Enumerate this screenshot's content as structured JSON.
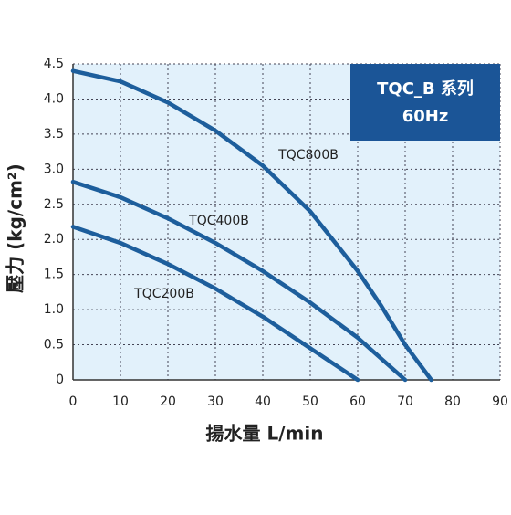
{
  "chart_data": {
    "type": "line",
    "xlabel": "揚水量 L/min",
    "ylabel": "壓力 (kg/cm²)",
    "box_lines": [
      "TQC_B 系列",
      "60Hz"
    ],
    "xlim": [
      0,
      90
    ],
    "ylim": [
      0,
      4.5
    ],
    "xticks": [
      0,
      10,
      20,
      30,
      40,
      50,
      60,
      70,
      80,
      90
    ],
    "yticks": [
      0,
      {
        "value": 0.5,
        "label": "0.5"
      },
      {
        "value": 1,
        "label": "1.0"
      },
      {
        "value": 1.5,
        "label": "1.5"
      },
      {
        "value": 2,
        "label": "2.0"
      },
      {
        "value": 2.5,
        "label": "2.5"
      },
      {
        "value": 3,
        "label": "3.0"
      },
      {
        "value": 3.5,
        "label": "3.5"
      },
      {
        "value": 4,
        "label": "4.0"
      },
      {
        "value": 4.5,
        "label": "4.5"
      }
    ],
    "grid": true,
    "series": [
      {
        "name": "TQC800B",
        "color": "#1d5e9c",
        "x": [
          0,
          10,
          20,
          30,
          40,
          50,
          60,
          65,
          70,
          75.5
        ],
        "values": [
          4.4,
          4.25,
          3.95,
          3.55,
          3.05,
          2.4,
          1.55,
          1.05,
          0.5,
          0
        ]
      },
      {
        "name": "TQC400B",
        "color": "#1d5e9c",
        "x": [
          0,
          10,
          20,
          30,
          40,
          50,
          60,
          70
        ],
        "values": [
          2.82,
          2.6,
          2.3,
          1.95,
          1.55,
          1.1,
          0.6,
          0
        ]
      },
      {
        "name": "TQC200B",
        "color": "#1d5e9c",
        "x": [
          0,
          10,
          20,
          30,
          40,
          50,
          60
        ],
        "values": [
          2.18,
          1.95,
          1.65,
          1.3,
          0.9,
          0.45,
          0
        ]
      }
    ]
  }
}
